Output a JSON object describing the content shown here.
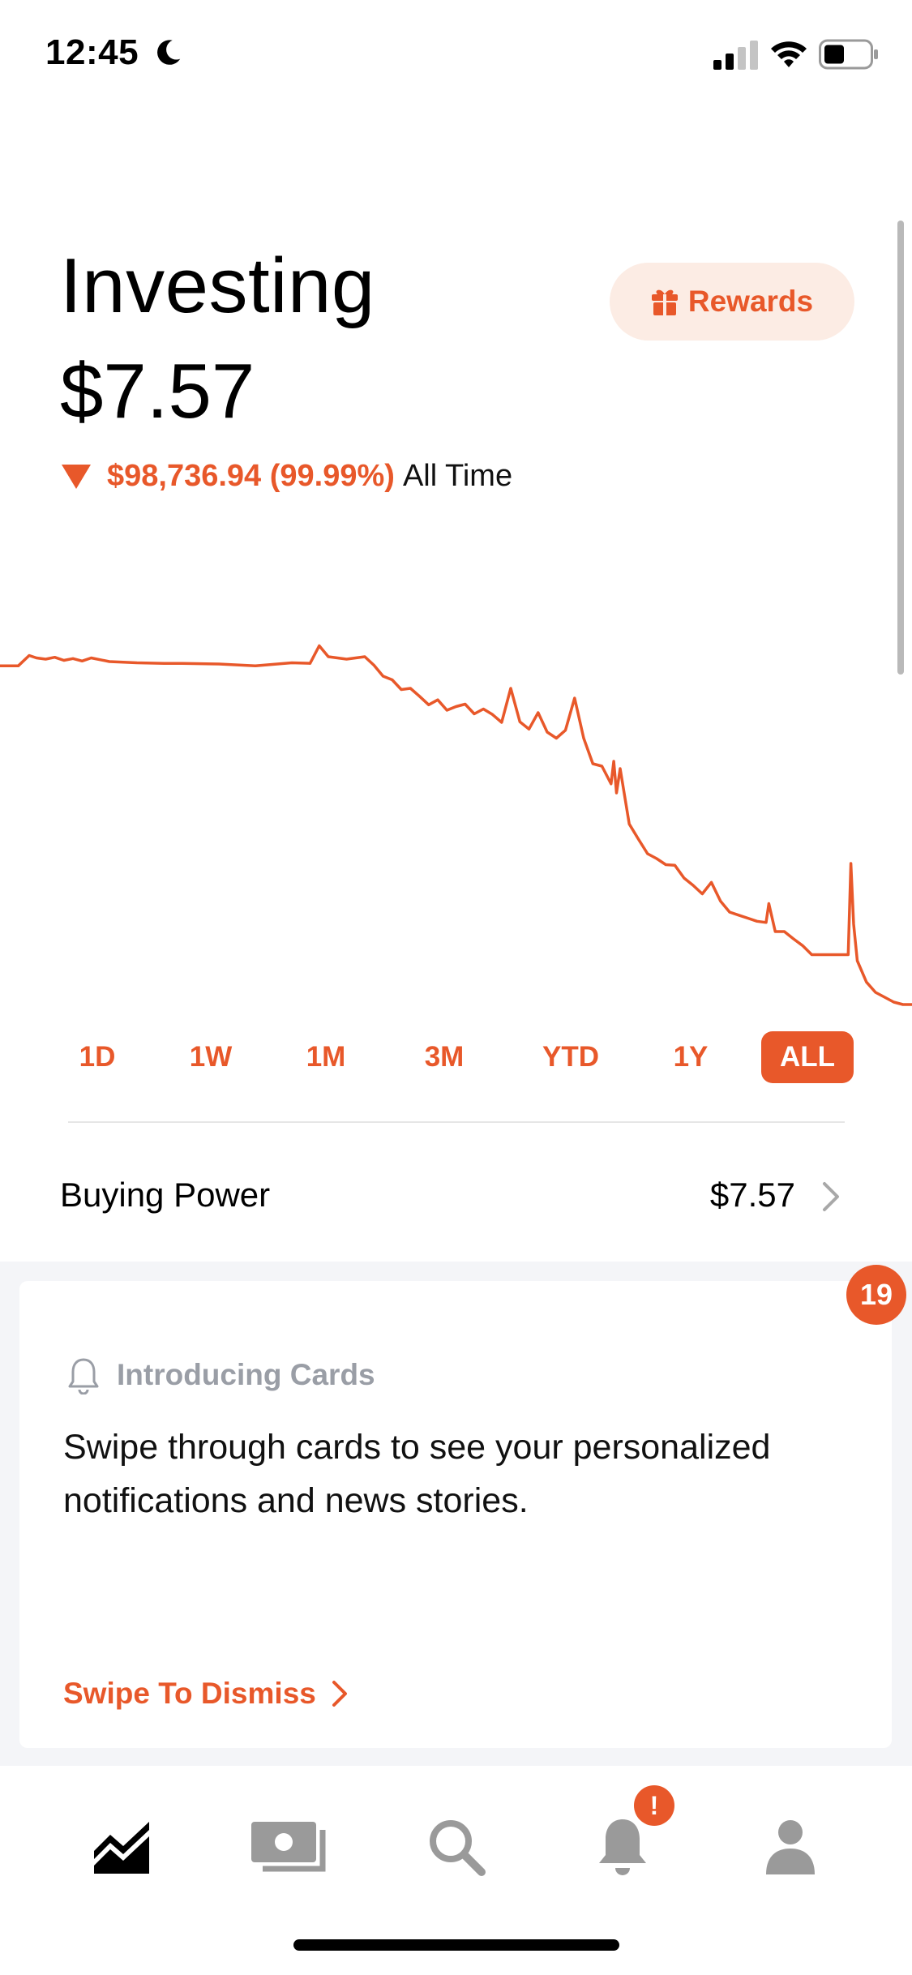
{
  "status_bar": {
    "time": "12:45",
    "icons": [
      "moon-icon",
      "signal-icon",
      "wifi-icon",
      "battery-icon"
    ]
  },
  "header": {
    "title": "Investing",
    "portfolio_value": "$7.57",
    "rewards_label": "Rewards",
    "change_value": "$98,736.94 (99.99%)",
    "change_period": "All Time",
    "change_direction": "down"
  },
  "colors": {
    "accent": "#e8582a",
    "accent_light": "#fcece4",
    "muted": "#9a9ea6",
    "cards_background": "#f4f5f8"
  },
  "chart_data": {
    "type": "line",
    "title": "",
    "xlabel": "",
    "ylabel": "",
    "grid": false,
    "legend": "none",
    "x": [
      0,
      2,
      3.2,
      4,
      5,
      6,
      7,
      8,
      9,
      10,
      12,
      15,
      18,
      20,
      24,
      28,
      32,
      34,
      35,
      36,
      38,
      40,
      41,
      42,
      43,
      44,
      45,
      46,
      47,
      48,
      49,
      50,
      51,
      52,
      53,
      54,
      55,
      56,
      57,
      58,
      59,
      60,
      61,
      62,
      63,
      64,
      65,
      66,
      67,
      67.3,
      67.6,
      68,
      69,
      70,
      71,
      72,
      73,
      74,
      75,
      76,
      77,
      78,
      79,
      80,
      81,
      82,
      83,
      84,
      84.3,
      85,
      86,
      87,
      88,
      89,
      90,
      91,
      92,
      93,
      93.3,
      93.6,
      94,
      95,
      96,
      97,
      98,
      99,
      100
    ],
    "values": [
      98.5,
      98.5,
      100.2,
      99.8,
      99.6,
      99.9,
      99.4,
      99.7,
      99.3,
      99.8,
      99.2,
      99,
      98.9,
      98.9,
      98.8,
      98.5,
      99,
      98.9,
      101.8,
      100,
      99.6,
      100,
      98.6,
      96.8,
      96.2,
      94.6,
      94.8,
      93.5,
      92.1,
      92.9,
      91.2,
      91.8,
      92.2,
      90.6,
      91.4,
      90.5,
      89.2,
      94.8,
      89.3,
      88.1,
      90.8,
      87.6,
      86.6,
      87.9,
      93.2,
      86.6,
      82.4,
      82.0,
      79.1,
      82.8,
      77.6,
      81.6,
      72.5,
      70.0,
      67.6,
      66.8,
      65.8,
      65.7,
      63.6,
      62.4,
      61.0,
      62.9,
      59.8,
      58.0,
      57.5,
      57.0,
      56.5,
      56.3,
      59.4,
      54.8,
      54.8,
      53.6,
      52.5,
      51.0,
      51.0,
      51.0,
      51.0,
      51.0,
      66.0,
      56.0,
      50.0,
      46.5,
      44.8,
      44.0,
      43.2,
      42.8,
      42.8
    ],
    "ylim": [
      40,
      104
    ],
    "xlim": [
      0,
      100
    ]
  },
  "ranges": [
    {
      "label": "1D",
      "active": false
    },
    {
      "label": "1W",
      "active": false
    },
    {
      "label": "1M",
      "active": false
    },
    {
      "label": "3M",
      "active": false
    },
    {
      "label": "YTD",
      "active": false
    },
    {
      "label": "1Y",
      "active": false
    },
    {
      "label": "ALL",
      "active": true
    }
  ],
  "buying_power": {
    "label": "Buying Power",
    "value": "$7.57"
  },
  "cards": {
    "badge_count": "19",
    "header": "Introducing Cards",
    "body": "Swipe through cards to see your personalized notifications and news stories.",
    "action": "Swipe To Dismiss"
  },
  "tab_bar": {
    "items": [
      {
        "name": "tab-investing",
        "icon": "line-chart-icon",
        "active": true
      },
      {
        "name": "tab-cash",
        "icon": "cash-icon",
        "active": false
      },
      {
        "name": "tab-search",
        "icon": "search-icon",
        "active": false
      },
      {
        "name": "tab-notifications",
        "icon": "bell-icon",
        "active": false
      },
      {
        "name": "tab-account",
        "icon": "person-icon",
        "active": false
      }
    ],
    "notification_alert": "!"
  }
}
